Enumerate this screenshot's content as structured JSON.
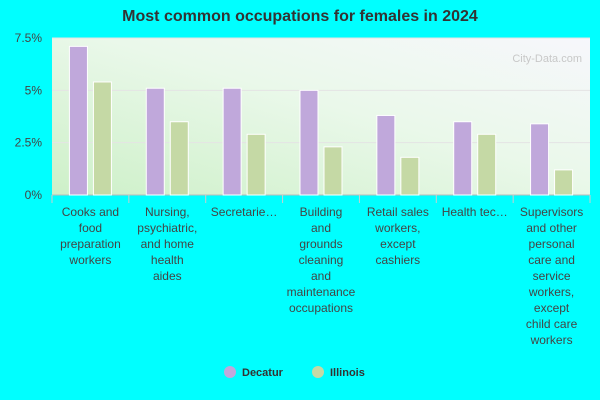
{
  "chart_data": {
    "type": "bar",
    "title": "Most common occupations for females in 2024",
    "categories": [
      [
        "Cooks and",
        "food",
        "preparation",
        "workers"
      ],
      [
        "Nursing,",
        "psychiatric,",
        "and home",
        "health",
        "aides"
      ],
      [
        "Secretarie…"
      ],
      [
        "Building",
        "and",
        "grounds",
        "cleaning",
        "and",
        "maintenance",
        "occupations"
      ],
      [
        "Retail sales",
        "workers,",
        "except",
        "cashiers"
      ],
      [
        "Health tec…"
      ],
      [
        "Supervisors",
        "and other",
        "personal",
        "care and",
        "service",
        "workers,",
        "except",
        "child care",
        "workers"
      ]
    ],
    "series": [
      {
        "name": "Decatur",
        "color": "#c0a8db",
        "values": [
          7.1,
          5.1,
          5.1,
          5.0,
          3.8,
          3.5,
          3.4
        ]
      },
      {
        "name": "Illinois",
        "color": "#c5d9a5",
        "values": [
          5.4,
          3.5,
          2.9,
          2.3,
          1.8,
          2.9,
          1.2
        ]
      }
    ],
    "ylim": [
      0,
      7.5
    ],
    "yticks": [
      0,
      2.5,
      5,
      7.5
    ],
    "ytick_labels": [
      "0%",
      "2.5%",
      "5%",
      "7.5%"
    ],
    "xlabel": "",
    "ylabel": "",
    "legend_position": "bottom",
    "watermark": "City-Data.com"
  }
}
